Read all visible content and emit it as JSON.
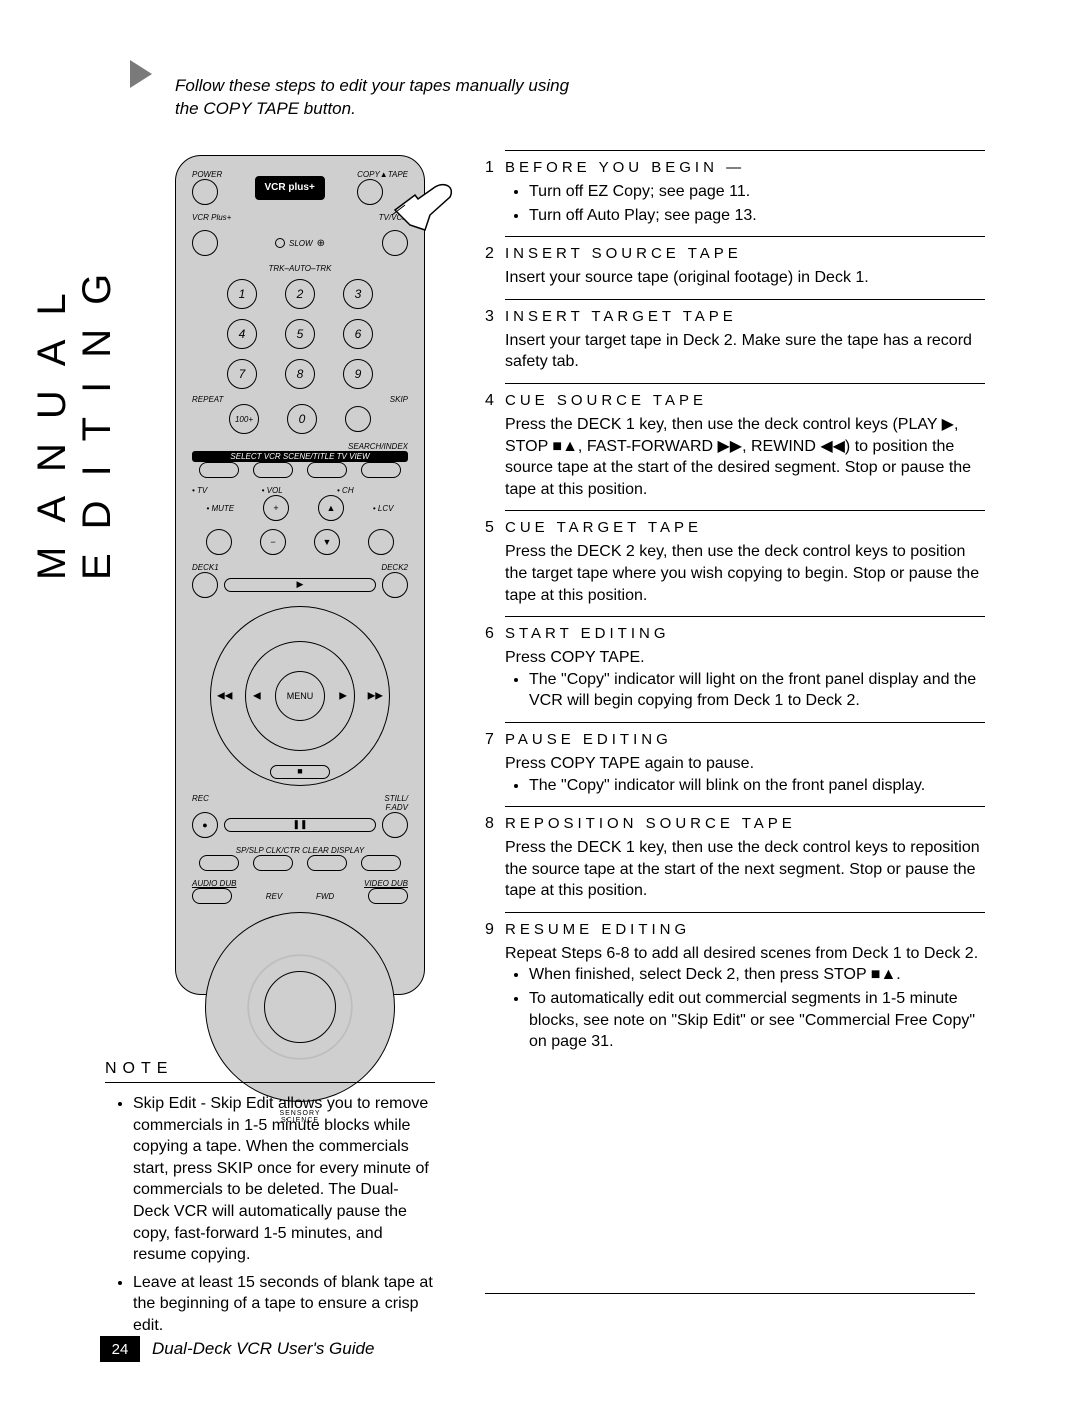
{
  "side_title": "MANUAL EDITING",
  "intro": "Follow these steps to edit your tapes manually using the COPY TAPE button.",
  "remote": {
    "power": "POWER",
    "logo": "VCR plus+",
    "copytape": "COPY▲TAPE",
    "vcrplus": "VCR Plus+",
    "tvvcr": "TV/VCR",
    "slow": "SLOW",
    "trk": "TRK–AUTO–TRK",
    "repeat": "REPEAT",
    "skip": "SKIP",
    "searchindex": "SEARCH/INDEX",
    "hundred": "100+",
    "selectrow": "SELECT  VCR  SCENE/TITLE  TV VIEW",
    "tv": "• TV",
    "vol": "• VOL",
    "ch": "• CH",
    "mute": "• MUTE",
    "lcv": "• LCV",
    "deck1": "DECK1",
    "deck2": "DECK2",
    "menu": "MENU",
    "rec": "REC",
    "still": "STILL/\nF.ADV",
    "labels4": "SP/SLP   CLK/CTR   CLEAR   DISPLAY",
    "audiodub": "AUDIO DUB",
    "videodub": "VIDEO DUB",
    "rev": "REV",
    "fwd": "FWD",
    "brand": "SENSORY\nSCIENCE"
  },
  "note": {
    "title": "NOTE",
    "items": [
      "Skip Edit - Skip Edit allows you to remove commercials in 1-5 minute blocks while copying a tape. When the commercials start, press SKIP once for every minute of commercials to be deleted. The Dual-Deck VCR will automatically pause the copy, fast-forward 1-5 minutes, and resume copying.",
      "Leave at least 15 seconds of blank tape at the beginning of a tape to ensure a crisp edit."
    ]
  },
  "steps": [
    {
      "num": "1",
      "title": "BEFORE YOU BEGIN —",
      "body": "",
      "bullets": [
        "Turn off EZ Copy; see page 11.",
        "Turn off Auto Play; see page 13."
      ]
    },
    {
      "num": "2",
      "title": "INSERT SOURCE TAPE",
      "body": "Insert your source tape (original footage) in Deck 1.",
      "bullets": []
    },
    {
      "num": "3",
      "title": "INSERT TARGET TAPE",
      "body": "Insert your target tape in Deck 2. Make sure the tape has a record safety tab.",
      "bullets": []
    },
    {
      "num": "4",
      "title": "CUE SOURCE TAPE",
      "body": "Press the DECK 1 key, then use the deck control keys (PLAY ▶, STOP ■▲, FAST-FORWARD ▶▶, REWIND ◀◀) to position the source tape at the start of the desired segment. Stop or pause the tape at this position.",
      "bullets": []
    },
    {
      "num": "5",
      "title": "CUE TARGET TAPE",
      "body": "Press the DECK 2 key, then use the deck control keys to position the target tape where you wish copying to begin. Stop or pause the tape at this position.",
      "bullets": []
    },
    {
      "num": "6",
      "title": "START EDITING",
      "body": "Press COPY TAPE.",
      "bullets": [
        "The \"Copy\" indicator will light on the front panel display and the VCR will begin copying from Deck 1 to Deck 2."
      ]
    },
    {
      "num": "7",
      "title": "PAUSE EDITING",
      "body": "Press COPY TAPE again to pause.",
      "bullets": [
        "The \"Copy\" indicator will blink on the front panel display."
      ]
    },
    {
      "num": "8",
      "title": "REPOSITION SOURCE TAPE",
      "body": "Press the DECK 1 key, then use the deck control keys to reposition the source tape at the start of the next segment. Stop or pause the tape at this position.",
      "bullets": []
    },
    {
      "num": "9",
      "title": "RESUME EDITING",
      "body": "Repeat Steps 6-8 to add all desired scenes from Deck 1 to Deck 2.",
      "bullets": [
        "When finished, select Deck 2, then press STOP ■▲.",
        "To automatically edit out commercial segments in 1-5 minute blocks, see note on \"Skip Edit\" or see \"Commercial Free Copy\" on page 31."
      ]
    }
  ],
  "footer": {
    "page": "24",
    "text": "Dual-Deck VCR User's Guide"
  }
}
